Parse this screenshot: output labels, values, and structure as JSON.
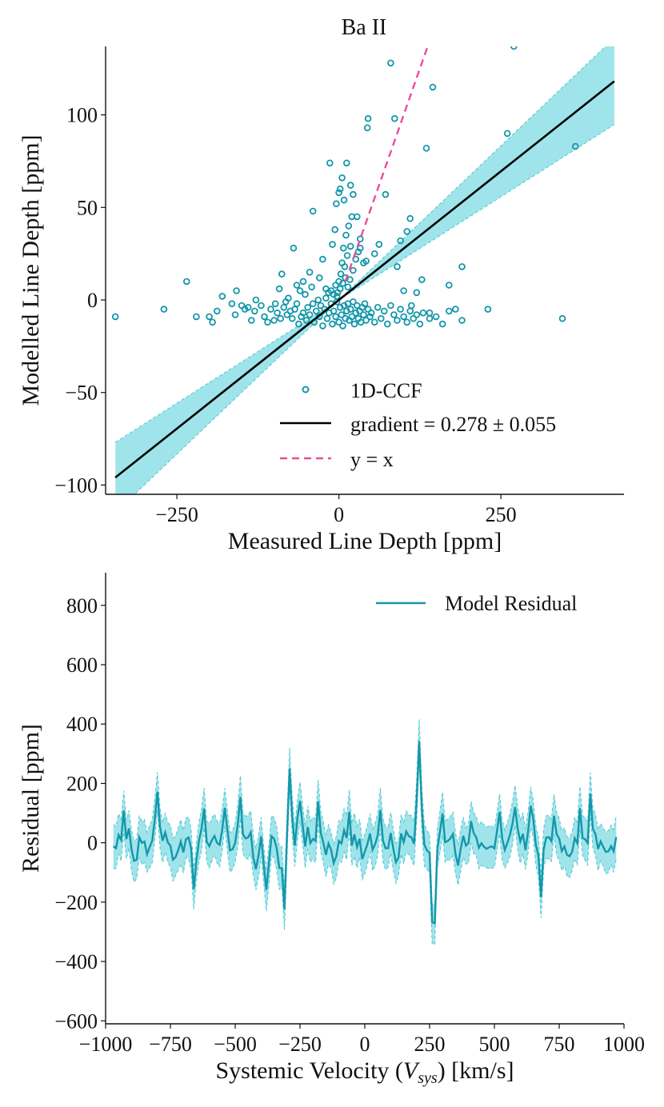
{
  "colors": {
    "teal": "#1497aa",
    "band": "#9fe4ea",
    "band_edge": "#4cc7d3",
    "fit": "#000000",
    "identity": "#ea4c9d",
    "axis": "#111111"
  },
  "chart_data": [
    {
      "type": "scatter",
      "title": "Ba II",
      "xlabel": "Measured Line Depth [ppm]",
      "ylabel": "Modelled Line Depth [ppm]",
      "xlim": [
        -360,
        440
      ],
      "ylim": [
        -105,
        137
      ],
      "xticks": [
        -250,
        0,
        250
      ],
      "yticks": [
        -100,
        -50,
        0,
        50,
        100
      ],
      "xtick_labels": [
        "−250",
        "0",
        "250"
      ],
      "ytick_labels": [
        "−100",
        "−50",
        "0",
        "50",
        "100"
      ],
      "gradient": 0.278,
      "gradient_err": 0.055,
      "fit_x": [
        -345,
        425
      ],
      "legend": {
        "placement": "lower-right",
        "entries": [
          {
            "label": "1D-CCF",
            "style": "marker"
          },
          {
            "label": "gradient = 0.278 ± 0.055",
            "style": "solid"
          },
          {
            "label": "y = x",
            "style": "dashed"
          }
        ]
      },
      "points": [
        [
          -345,
          -9
        ],
        [
          -270,
          -5
        ],
        [
          -235,
          10
        ],
        [
          -220,
          -9
        ],
        [
          -200,
          -9
        ],
        [
          -195,
          -12
        ],
        [
          -188,
          -6
        ],
        [
          -180,
          2
        ],
        [
          -165,
          -2
        ],
        [
          -160,
          -8
        ],
        [
          -158,
          5
        ],
        [
          -150,
          -3
        ],
        [
          -145,
          -5
        ],
        [
          -140,
          -4
        ],
        [
          -135,
          -11
        ],
        [
          -130,
          -6
        ],
        [
          -128,
          0
        ],
        [
          -120,
          -3
        ],
        [
          -115,
          -9
        ],
        [
          -110,
          -12
        ],
        [
          -105,
          -5
        ],
        [
          -100,
          -11
        ],
        [
          -98,
          -2
        ],
        [
          -95,
          -7
        ],
        [
          -92,
          6
        ],
        [
          -90,
          -10
        ],
        [
          -88,
          14
        ],
        [
          -85,
          -4
        ],
        [
          -82,
          -1
        ],
        [
          -80,
          -8
        ],
        [
          -78,
          1
        ],
        [
          -75,
          -6
        ],
        [
          -72,
          -10
        ],
        [
          -70,
          28
        ],
        [
          -68,
          -5
        ],
        [
          -65,
          -2
        ],
        [
          -62,
          -13
        ],
        [
          -60,
          5
        ],
        [
          -58,
          -9
        ],
        [
          -55,
          -7
        ],
        [
          -52,
          3
        ],
        [
          -50,
          -11
        ],
        [
          -48,
          -4
        ],
        [
          -45,
          -8
        ],
        [
          -42,
          7
        ],
        [
          -40,
          -2
        ],
        [
          -38,
          -12
        ],
        [
          -35,
          -6
        ],
        [
          -32,
          0
        ],
        [
          -30,
          -9
        ],
        [
          -28,
          -3
        ],
        [
          -25,
          -14
        ],
        [
          -22,
          -5
        ],
        [
          -20,
          1
        ],
        [
          -18,
          -10
        ],
        [
          -15,
          -7
        ],
        [
          -12,
          -2
        ],
        [
          -10,
          -13
        ],
        [
          -8,
          -6
        ],
        [
          -5,
          -9
        ],
        [
          -3,
          -1
        ],
        [
          0,
          -12
        ],
        [
          2,
          -4
        ],
        [
          4,
          -8
        ],
        [
          6,
          -14
        ],
        [
          8,
          -3
        ],
        [
          10,
          -10
        ],
        [
          12,
          -6
        ],
        [
          14,
          -2
        ],
        [
          16,
          -11
        ],
        [
          18,
          -5
        ],
        [
          20,
          -9
        ],
        [
          22,
          -1
        ],
        [
          24,
          -13
        ],
        [
          26,
          -7
        ],
        [
          28,
          -3
        ],
        [
          30,
          -10
        ],
        [
          32,
          -6
        ],
        [
          34,
          -12
        ],
        [
          36,
          -4
        ],
        [
          38,
          -8
        ],
        [
          40,
          -2
        ],
        [
          42,
          -11
        ],
        [
          45,
          -5
        ],
        [
          48,
          -9
        ],
        [
          50,
          -7
        ],
        [
          55,
          -12
        ],
        [
          60,
          -4
        ],
        [
          65,
          -10
        ],
        [
          70,
          -6
        ],
        [
          75,
          -13
        ],
        [
          80,
          -3
        ],
        [
          85,
          -8
        ],
        [
          90,
          -11
        ],
        [
          95,
          -5
        ],
        [
          100,
          -9
        ],
        [
          105,
          -12
        ],
        [
          110,
          -6
        ],
        [
          115,
          -10
        ],
        [
          120,
          -8
        ],
        [
          125,
          -13
        ],
        [
          130,
          -7
        ],
        [
          140,
          -10
        ],
        [
          150,
          -9
        ],
        [
          160,
          -13
        ],
        [
          170,
          -6
        ],
        [
          180,
          -5
        ],
        [
          190,
          -11
        ],
        [
          230,
          -5
        ],
        [
          345,
          -10
        ],
        [
          -5,
          8
        ],
        [
          -2,
          4
        ],
        [
          0,
          10
        ],
        [
          3,
          14
        ],
        [
          5,
          20
        ],
        [
          7,
          28
        ],
        [
          9,
          18
        ],
        [
          11,
          35
        ],
        [
          13,
          24
        ],
        [
          15,
          40
        ],
        [
          18,
          29
        ],
        [
          20,
          45
        ],
        [
          -3,
          2
        ],
        [
          -8,
          3
        ],
        [
          -12,
          5
        ],
        [
          -16,
          4
        ],
        [
          -20,
          6
        ],
        [
          2,
          6
        ],
        [
          6,
          9
        ],
        [
          10,
          12
        ],
        [
          14,
          7
        ],
        [
          17,
          11
        ],
        [
          22,
          16
        ],
        [
          26,
          22
        ],
        [
          30,
          26
        ],
        [
          33,
          33
        ],
        [
          -6,
          38
        ],
        [
          -10,
          30
        ],
        [
          -4,
          52
        ],
        [
          0,
          58
        ],
        [
          2,
          60
        ],
        [
          5,
          66
        ],
        [
          8,
          54
        ],
        [
          12,
          74
        ],
        [
          18,
          62
        ],
        [
          22,
          57
        ],
        [
          28,
          45
        ],
        [
          33,
          28
        ],
        [
          38,
          20
        ],
        [
          42,
          21
        ],
        [
          44,
          93
        ],
        [
          45,
          98
        ],
        [
          -14,
          74
        ],
        [
          55,
          25
        ],
        [
          62,
          30
        ],
        [
          72,
          57
        ],
        [
          80,
          128
        ],
        [
          86,
          98
        ],
        [
          90,
          18
        ],
        [
          95,
          32
        ],
        [
          100,
          5
        ],
        [
          105,
          37
        ],
        [
          110,
          44
        ],
        [
          120,
          4
        ],
        [
          128,
          11
        ],
        [
          135,
          82
        ],
        [
          145,
          115
        ],
        [
          170,
          8
        ],
        [
          190,
          18
        ],
        [
          260,
          90
        ],
        [
          270,
          137
        ],
        [
          365,
          83
        ],
        [
          -40,
          48
        ],
        [
          -25,
          22
        ],
        [
          -30,
          12
        ],
        [
          -45,
          15
        ],
        [
          -55,
          10
        ],
        [
          -65,
          8
        ],
        [
          140,
          -7
        ],
        [
          112,
          -3
        ]
      ]
    },
    {
      "type": "line",
      "xlabel": "Systemic Velocity (V_sys) [km/s]",
      "xlabel_prefix": "Systemic Velocity (",
      "xlabel_var": "V",
      "xlabel_sub": "sys",
      "xlabel_suffix": ") [km/s]",
      "ylabel": "Residual [ppm]",
      "xlim": [
        -1000,
        1000
      ],
      "ylim": [
        -610,
        910
      ],
      "xticks": [
        -1000,
        -750,
        -500,
        -250,
        0,
        250,
        500,
        750,
        1000
      ],
      "yticks": [
        -600,
        -400,
        -200,
        0,
        200,
        400,
        600,
        800
      ],
      "xtick_labels": [
        "−1000",
        "−750",
        "−500",
        "−250",
        "0",
        "250",
        "500",
        "750",
        "1000"
      ],
      "ytick_labels": [
        "−600",
        "−400",
        "−200",
        "0",
        "200",
        "400",
        "600",
        "800"
      ],
      "series_range": [
        -970,
        970
      ],
      "series_step": 10,
      "band_halfwidth": 60,
      "legend": {
        "placement": "upper-right",
        "entries": [
          {
            "label": "Model Residual",
            "style": "solid"
          }
        ]
      },
      "features": [
        [
          -930,
          110
        ],
        [
          -890,
          -80
        ],
        [
          -800,
          175
        ],
        [
          -730,
          -60
        ],
        [
          -660,
          -150
        ],
        [
          -620,
          120
        ],
        [
          -540,
          95
        ],
        [
          -480,
          160
        ],
        [
          -420,
          -90
        ],
        [
          -380,
          -140
        ],
        [
          -330,
          -70
        ],
        [
          -310,
          -245
        ],
        [
          -290,
          290
        ],
        [
          -250,
          170
        ],
        [
          -180,
          120
        ],
        [
          -120,
          -100
        ],
        [
          -60,
          110
        ],
        [
          0,
          -60
        ],
        [
          60,
          95
        ],
        [
          120,
          -80
        ],
        [
          170,
          70
        ],
        [
          210,
          360
        ],
        [
          240,
          -60
        ],
        [
          265,
          -335
        ],
        [
          300,
          110
        ],
        [
          360,
          -80
        ],
        [
          410,
          90
        ],
        [
          470,
          -60
        ],
        [
          520,
          100
        ],
        [
          580,
          130
        ],
        [
          640,
          160
        ],
        [
          680,
          -160
        ],
        [
          730,
          100
        ],
        [
          790,
          -90
        ],
        [
          830,
          80
        ],
        [
          870,
          160
        ],
        [
          930,
          -70
        ]
      ]
    }
  ]
}
